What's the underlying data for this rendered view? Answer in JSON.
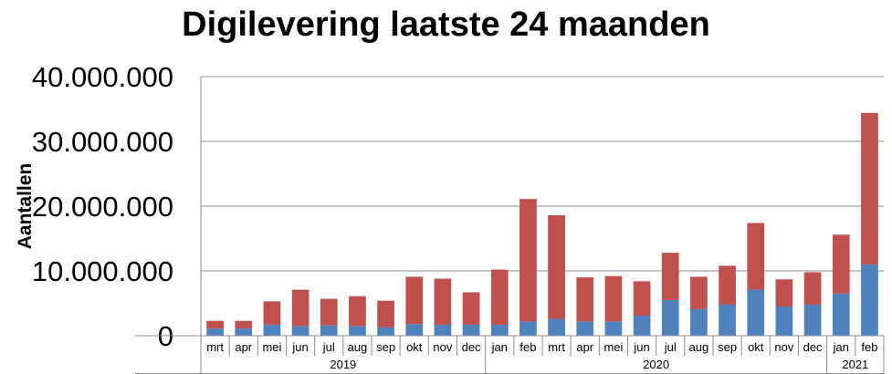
{
  "chart_data": {
    "type": "bar",
    "stacked": true,
    "title": "Digilevering laatste 24 maanden",
    "ylabel": "Aantallen",
    "xlabel": "",
    "ylim": [
      0,
      40000000
    ],
    "yticks": [
      0,
      10000000,
      20000000,
      30000000,
      40000000
    ],
    "ytick_labels": [
      "0",
      "10.000.000",
      "20.000.000",
      "30.000.000",
      "40.000.000"
    ],
    "grid": true,
    "legend": "none",
    "categories": [
      "mrt",
      "apr",
      "mei",
      "jun",
      "jul",
      "aug",
      "sep",
      "okt",
      "nov",
      "dec",
      "jan",
      "feb",
      "mrt",
      "apr",
      "mei",
      "jun",
      "jul",
      "aug",
      "sep",
      "okt",
      "nov",
      "dec",
      "jan",
      "feb"
    ],
    "years": [
      {
        "label": "2019",
        "start": 0,
        "count": 10
      },
      {
        "label": "2020",
        "start": 10,
        "count": 12
      },
      {
        "label": "2021",
        "start": 22,
        "count": 2
      }
    ],
    "series": [
      {
        "color": "#4f81bd",
        "values": [
          1100000,
          1100000,
          1700000,
          1500000,
          1600000,
          1500000,
          1300000,
          1800000,
          1700000,
          1700000,
          1700000,
          2200000,
          2600000,
          2200000,
          2200000,
          3100000,
          5500000,
          4100000,
          4800000,
          7100000,
          4500000,
          4800000,
          6500000,
          11000000
        ]
      },
      {
        "color": "#c0504d",
        "values": [
          1200000,
          1200000,
          3600000,
          5600000,
          4100000,
          4600000,
          4100000,
          7300000,
          7100000,
          5000000,
          8500000,
          18900000,
          16000000,
          6800000,
          7000000,
          5300000,
          7300000,
          5000000,
          6000000,
          10300000,
          4200000,
          5000000,
          9100000,
          23400000
        ]
      }
    ]
  }
}
